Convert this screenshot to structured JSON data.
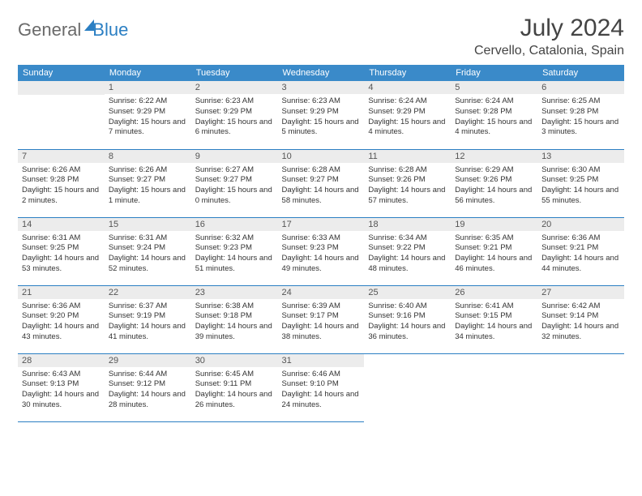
{
  "logo": {
    "part1": "General",
    "part2": "Blue"
  },
  "title": "July 2024",
  "location": "Cervello, Catalonia, Spain",
  "weekdays": [
    "Sunday",
    "Monday",
    "Tuesday",
    "Wednesday",
    "Thursday",
    "Friday",
    "Saturday"
  ],
  "colors": {
    "header_bg": "#3a8ac9",
    "header_text": "#ffffff",
    "daynum_bg": "#ececec",
    "rule": "#2b7fc3",
    "logo_gray": "#6a6a6a",
    "logo_blue": "#2b7fc3"
  },
  "first_weekday_offset": 1,
  "days": [
    {
      "n": 1,
      "sunrise": "6:22 AM",
      "sunset": "9:29 PM",
      "daylight": "15 hours and 7 minutes."
    },
    {
      "n": 2,
      "sunrise": "6:23 AM",
      "sunset": "9:29 PM",
      "daylight": "15 hours and 6 minutes."
    },
    {
      "n": 3,
      "sunrise": "6:23 AM",
      "sunset": "9:29 PM",
      "daylight": "15 hours and 5 minutes."
    },
    {
      "n": 4,
      "sunrise": "6:24 AM",
      "sunset": "9:29 PM",
      "daylight": "15 hours and 4 minutes."
    },
    {
      "n": 5,
      "sunrise": "6:24 AM",
      "sunset": "9:28 PM",
      "daylight": "15 hours and 4 minutes."
    },
    {
      "n": 6,
      "sunrise": "6:25 AM",
      "sunset": "9:28 PM",
      "daylight": "15 hours and 3 minutes."
    },
    {
      "n": 7,
      "sunrise": "6:26 AM",
      "sunset": "9:28 PM",
      "daylight": "15 hours and 2 minutes."
    },
    {
      "n": 8,
      "sunrise": "6:26 AM",
      "sunset": "9:27 PM",
      "daylight": "15 hours and 1 minute."
    },
    {
      "n": 9,
      "sunrise": "6:27 AM",
      "sunset": "9:27 PM",
      "daylight": "15 hours and 0 minutes."
    },
    {
      "n": 10,
      "sunrise": "6:28 AM",
      "sunset": "9:27 PM",
      "daylight": "14 hours and 58 minutes."
    },
    {
      "n": 11,
      "sunrise": "6:28 AM",
      "sunset": "9:26 PM",
      "daylight": "14 hours and 57 minutes."
    },
    {
      "n": 12,
      "sunrise": "6:29 AM",
      "sunset": "9:26 PM",
      "daylight": "14 hours and 56 minutes."
    },
    {
      "n": 13,
      "sunrise": "6:30 AM",
      "sunset": "9:25 PM",
      "daylight": "14 hours and 55 minutes."
    },
    {
      "n": 14,
      "sunrise": "6:31 AM",
      "sunset": "9:25 PM",
      "daylight": "14 hours and 53 minutes."
    },
    {
      "n": 15,
      "sunrise": "6:31 AM",
      "sunset": "9:24 PM",
      "daylight": "14 hours and 52 minutes."
    },
    {
      "n": 16,
      "sunrise": "6:32 AM",
      "sunset": "9:23 PM",
      "daylight": "14 hours and 51 minutes."
    },
    {
      "n": 17,
      "sunrise": "6:33 AM",
      "sunset": "9:23 PM",
      "daylight": "14 hours and 49 minutes."
    },
    {
      "n": 18,
      "sunrise": "6:34 AM",
      "sunset": "9:22 PM",
      "daylight": "14 hours and 48 minutes."
    },
    {
      "n": 19,
      "sunrise": "6:35 AM",
      "sunset": "9:21 PM",
      "daylight": "14 hours and 46 minutes."
    },
    {
      "n": 20,
      "sunrise": "6:36 AM",
      "sunset": "9:21 PM",
      "daylight": "14 hours and 44 minutes."
    },
    {
      "n": 21,
      "sunrise": "6:36 AM",
      "sunset": "9:20 PM",
      "daylight": "14 hours and 43 minutes."
    },
    {
      "n": 22,
      "sunrise": "6:37 AM",
      "sunset": "9:19 PM",
      "daylight": "14 hours and 41 minutes."
    },
    {
      "n": 23,
      "sunrise": "6:38 AM",
      "sunset": "9:18 PM",
      "daylight": "14 hours and 39 minutes."
    },
    {
      "n": 24,
      "sunrise": "6:39 AM",
      "sunset": "9:17 PM",
      "daylight": "14 hours and 38 minutes."
    },
    {
      "n": 25,
      "sunrise": "6:40 AM",
      "sunset": "9:16 PM",
      "daylight": "14 hours and 36 minutes."
    },
    {
      "n": 26,
      "sunrise": "6:41 AM",
      "sunset": "9:15 PM",
      "daylight": "14 hours and 34 minutes."
    },
    {
      "n": 27,
      "sunrise": "6:42 AM",
      "sunset": "9:14 PM",
      "daylight": "14 hours and 32 minutes."
    },
    {
      "n": 28,
      "sunrise": "6:43 AM",
      "sunset": "9:13 PM",
      "daylight": "14 hours and 30 minutes."
    },
    {
      "n": 29,
      "sunrise": "6:44 AM",
      "sunset": "9:12 PM",
      "daylight": "14 hours and 28 minutes."
    },
    {
      "n": 30,
      "sunrise": "6:45 AM",
      "sunset": "9:11 PM",
      "daylight": "14 hours and 26 minutes."
    },
    {
      "n": 31,
      "sunrise": "6:46 AM",
      "sunset": "9:10 PM",
      "daylight": "14 hours and 24 minutes."
    }
  ],
  "labels": {
    "sunrise_prefix": "Sunrise: ",
    "sunset_prefix": "Sunset: ",
    "daylight_prefix": "Daylight: "
  }
}
